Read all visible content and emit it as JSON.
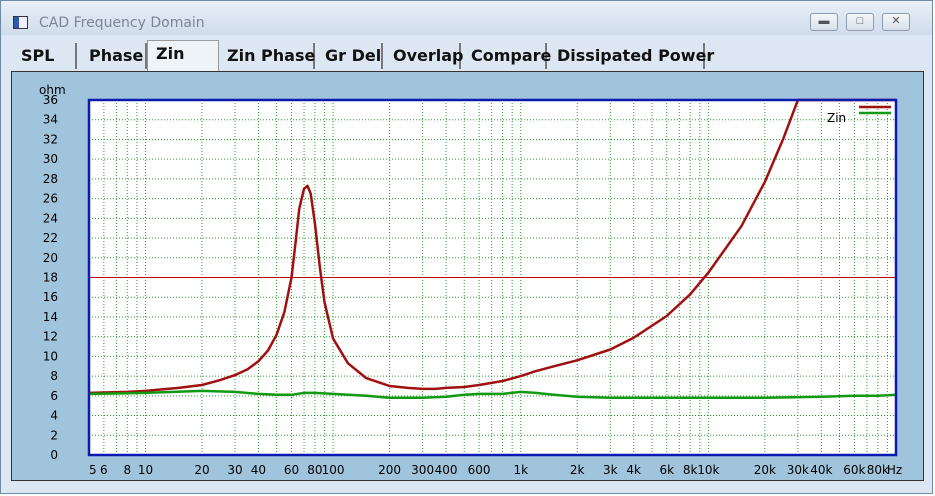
{
  "window": {
    "title": "CAD Frequency Domain"
  },
  "tabs": [
    "SPL",
    "Phase",
    "Zin",
    "Zin Phase",
    "Gr Del",
    "Overlap",
    "Compare",
    "Dissipated Power"
  ],
  "active_tab": "Zin",
  "chart_data": {
    "type": "line",
    "ylabel": "ohm",
    "xlabel": "",
    "x_scale": "log",
    "xlim": [
      5,
      100000
    ],
    "ylim": [
      0,
      36
    ],
    "y_ticks": [
      0,
      2,
      4,
      6,
      8,
      10,
      12,
      14,
      16,
      18,
      20,
      22,
      24,
      26,
      28,
      30,
      32,
      34,
      36
    ],
    "x_tick_values": [
      5,
      6,
      8,
      10,
      20,
      30,
      40,
      60,
      80,
      100,
      200,
      300,
      400,
      600,
      1000,
      2000,
      3000,
      4000,
      6000,
      8000,
      10000,
      20000,
      30000,
      40000,
      60000,
      80000
    ],
    "x_tick_labels": [
      "5",
      "6",
      "8",
      "10",
      "20",
      "30",
      "40",
      "60",
      "80",
      "100",
      "200",
      "300",
      "400",
      "600",
      "1k",
      "2k",
      "3k",
      "4k",
      "6k",
      "8k",
      "10k",
      "20k",
      "30k",
      "40k",
      "60k",
      "80k"
    ],
    "x_unit": "Hz",
    "grid": true,
    "reference_line_y": 18,
    "legend": {
      "position": "top-right",
      "entries": [
        "Zin"
      ]
    },
    "series": [
      {
        "name": "Zin",
        "color": "#a01010",
        "x": [
          5,
          8,
          10,
          15,
          20,
          25,
          30,
          35,
          40,
          45,
          50,
          55,
          60,
          63,
          66,
          70,
          73,
          76,
          80,
          85,
          90,
          100,
          120,
          150,
          200,
          250,
          300,
          350,
          400,
          500,
          600,
          800,
          1000,
          1200,
          1500,
          2000,
          3000,
          4000,
          6000,
          8000,
          10000,
          15000,
          20000,
          25000,
          28000,
          30000,
          40000,
          60000,
          80000,
          100000
        ],
        "y": [
          6.3,
          6.4,
          6.5,
          6.8,
          7.1,
          7.6,
          8.1,
          8.7,
          9.5,
          10.6,
          12.2,
          14.5,
          18.0,
          21.5,
          25.0,
          27.0,
          27.3,
          26.5,
          23.5,
          19.0,
          15.5,
          11.8,
          9.3,
          7.8,
          7.0,
          6.8,
          6.7,
          6.7,
          6.8,
          6.9,
          7.1,
          7.5,
          8.0,
          8.5,
          9.0,
          9.6,
          10.7,
          11.9,
          14.1,
          16.3,
          18.5,
          23.2,
          27.7,
          32.0,
          34.5,
          36.0,
          36.0,
          36.0,
          36.0,
          36.0
        ]
      },
      {
        "name": "",
        "color": "#119911",
        "x": [
          5,
          10,
          20,
          30,
          40,
          50,
          60,
          70,
          80,
          100,
          150,
          200,
          300,
          400,
          500,
          600,
          800,
          1000,
          1200,
          1500,
          2000,
          3000,
          5000,
          10000,
          20000,
          40000,
          60000,
          80000,
          100000
        ],
        "y": [
          6.2,
          6.3,
          6.5,
          6.4,
          6.2,
          6.1,
          6.1,
          6.3,
          6.3,
          6.2,
          6.0,
          5.8,
          5.8,
          5.9,
          6.1,
          6.2,
          6.2,
          6.4,
          6.3,
          6.1,
          5.9,
          5.8,
          5.8,
          5.8,
          5.8,
          5.9,
          6.0,
          6.0,
          6.1
        ]
      }
    ]
  }
}
